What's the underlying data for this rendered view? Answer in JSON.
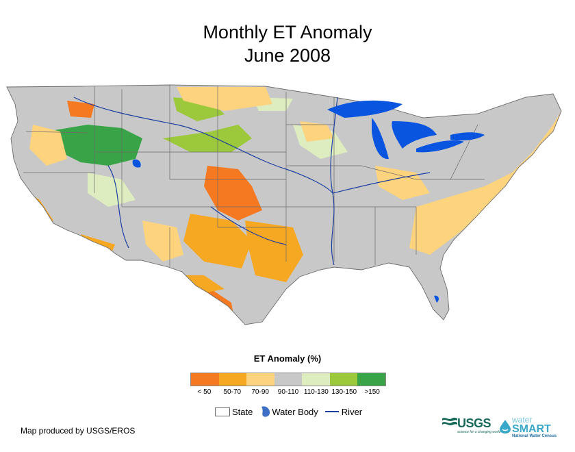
{
  "title": {
    "line1": "Monthly ET Anomaly",
    "line2": "June 2008"
  },
  "legend": {
    "title": "ET Anomaly (%)",
    "classes": [
      {
        "label": "< 50",
        "color": "#f47920"
      },
      {
        "label": "50-70",
        "color": "#f7a823"
      },
      {
        "label": "70-90",
        "color": "#fdd37e"
      },
      {
        "label": "90-110",
        "color": "#c8c8c8"
      },
      {
        "label": "110-130",
        "color": "#ddedbf"
      },
      {
        "label": "130-150",
        "color": "#9cc93b"
      },
      {
        "label": ">150",
        "color": "#38a447"
      }
    ],
    "key": {
      "state": "State",
      "water": "Water Body",
      "river": "River"
    }
  },
  "credit": "Map produced by USGS/EROS",
  "logos": {
    "usgs": "USGS",
    "usgs_tagline": "science for a changing world",
    "watersmart_top": "water",
    "watersmart_main": "SMART",
    "watersmart_sub": "National Water Census"
  },
  "colors": {
    "water": "#0a55e0",
    "river": "#1c3fa0",
    "state_line": "#6a6a6a",
    "land": "#c8c8c8"
  }
}
